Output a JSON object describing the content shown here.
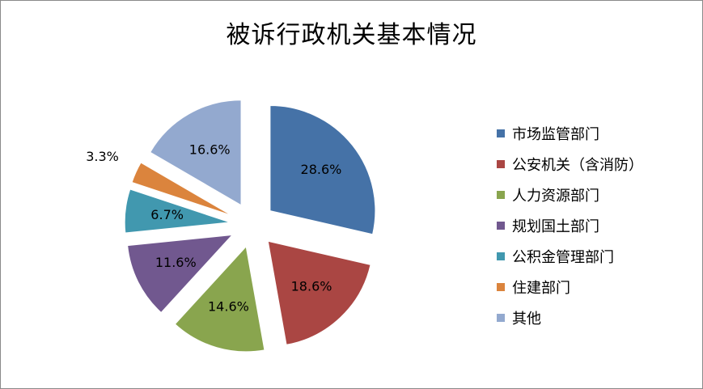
{
  "chart_data": {
    "type": "pie",
    "title": "被诉行政机关基本情况",
    "legend_position": "right",
    "exploded": true,
    "slices": [
      {
        "name": "市场监管部门",
        "value": 28.6,
        "label": "28.6%",
        "color": "#4572A7"
      },
      {
        "name": "公安机关（含消防）",
        "value": 18.6,
        "label": "18.6%",
        "color": "#AA4643"
      },
      {
        "name": "人力资源部门",
        "value": 14.6,
        "label": "14.6%",
        "color": "#89A54E"
      },
      {
        "name": "规划国土部门",
        "value": 11.6,
        "label": "11.6%",
        "color": "#71588F"
      },
      {
        "name": "公积金管理部门",
        "value": 6.7,
        "label": "6.7%",
        "color": "#4198AF"
      },
      {
        "name": "住建部门",
        "value": 3.3,
        "label": "3.3%",
        "color": "#DB843D"
      },
      {
        "name": "其他",
        "value": 16.6,
        "label": "16.6%",
        "color": "#93A9CF"
      }
    ]
  }
}
